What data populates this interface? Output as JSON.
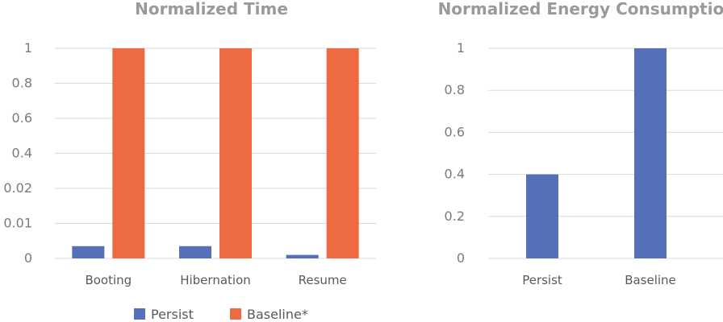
{
  "colors": {
    "persist": "#5470b8",
    "baseline": "#ee6a40"
  },
  "chart_data": [
    {
      "type": "bar",
      "title": "Normalized Time",
      "y_tick_labels": [
        "0",
        "0.01",
        "0.02",
        "0.4",
        "0.6",
        "0.8",
        "1"
      ],
      "categories": [
        "Booting",
        "Hibernation",
        "Resume"
      ],
      "series": [
        {
          "name": "Persist",
          "values": [
            0.0035,
            0.0035,
            0.001
          ]
        },
        {
          "name": "Baseline*",
          "values": [
            1,
            1,
            1
          ]
        }
      ],
      "grid": true,
      "legend_position": "bottom"
    },
    {
      "type": "bar",
      "title": "Normalized Energy Consumption",
      "y_tick_labels": [
        "0",
        "0.2",
        "0.4",
        "0.6",
        "0.8",
        "1"
      ],
      "ylim": [
        0,
        1
      ],
      "categories": [
        "Persist",
        "Baseline"
      ],
      "values": [
        0.4,
        1
      ],
      "grid": true
    }
  ]
}
